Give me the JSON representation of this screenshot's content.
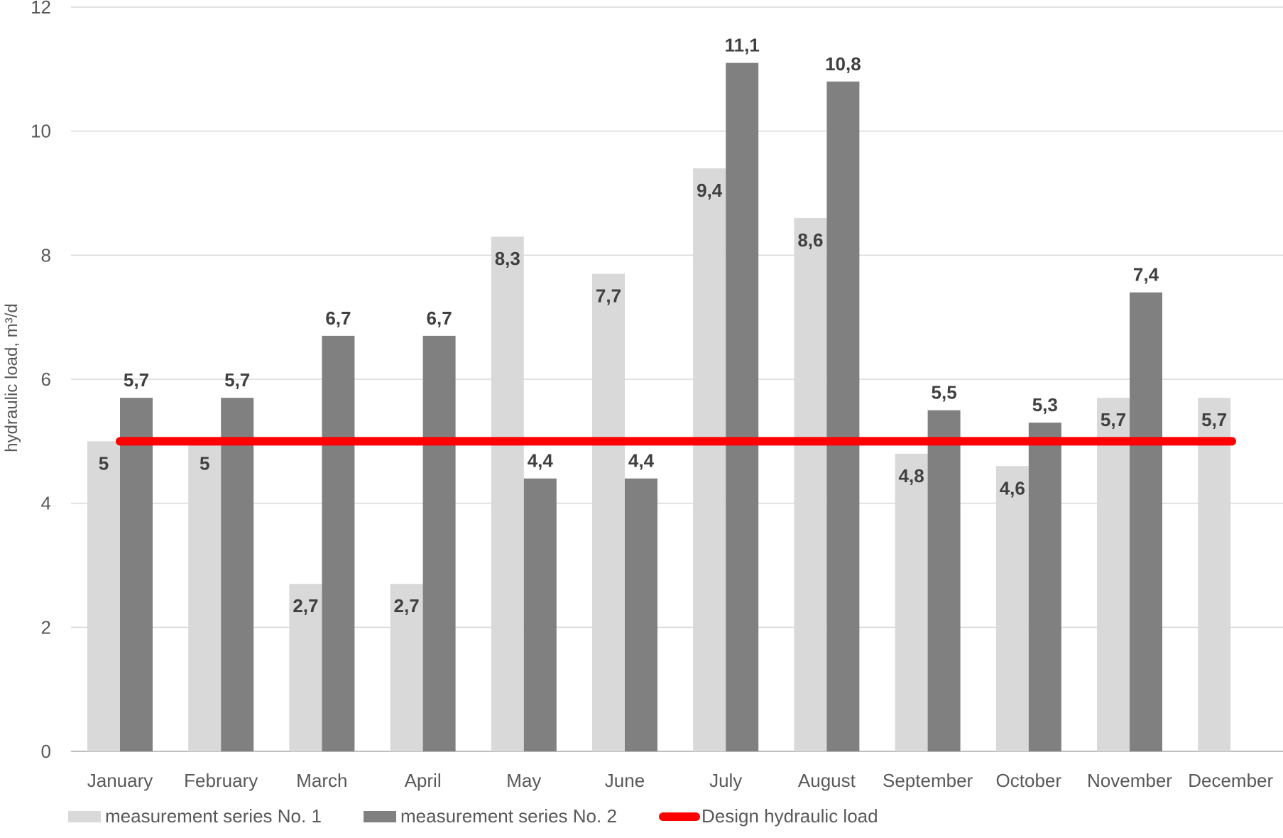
{
  "chart_data": {
    "type": "bar",
    "title": "",
    "xlabel": "",
    "ylabel": "hydraulic load, m³/d",
    "ylim": [
      0,
      12
    ],
    "yticks": [
      0,
      2,
      4,
      6,
      8,
      10,
      12
    ],
    "grid": true,
    "legend_position": "bottom",
    "categories": [
      "January",
      "February",
      "March",
      "April",
      "May",
      "June",
      "July",
      "August",
      "September",
      "October",
      "November",
      "December"
    ],
    "series": [
      {
        "name": "measurement series No. 1",
        "color": "#d9d9d9",
        "values": [
          5,
          5,
          2.7,
          2.7,
          8.3,
          7.7,
          9.4,
          8.6,
          4.8,
          4.6,
          5.7,
          5.7
        ],
        "labels": [
          "5",
          "5",
          "2,7",
          "2,7",
          "8,3",
          "7,7",
          "9,4",
          "8,6",
          "4,8",
          "4,6",
          "5,7",
          "5,7"
        ]
      },
      {
        "name": "measurement series No. 2",
        "color": "#808080",
        "values": [
          5.7,
          5.7,
          6.7,
          6.7,
          4.4,
          4.4,
          11.1,
          10.8,
          5.5,
          5.3,
          7.4,
          null
        ],
        "labels": [
          "5,7",
          "5,7",
          "6,7",
          "6,7",
          "4,4",
          "4,4",
          "11,1",
          "10,8",
          "5,5",
          "5,3",
          "7,4",
          ""
        ]
      }
    ],
    "reference_line": {
      "name": "Design hydraulic load",
      "color": "#ff0000",
      "value": 5
    }
  }
}
